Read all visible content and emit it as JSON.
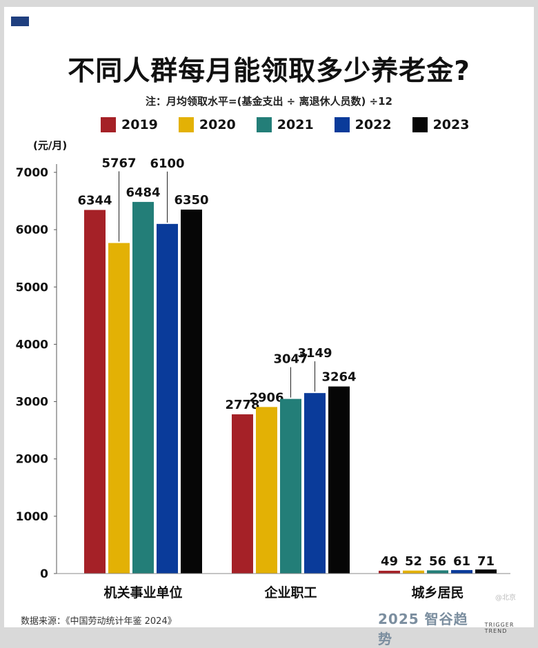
{
  "page": {
    "title": "不同人群每月能领取多少养老金?",
    "note": "注：月均领取水平=(基金支出 ÷ 离退休人员数) ÷12",
    "unit": "(元/月)",
    "source": "数据来源：《中国劳动统计年鉴 2024》",
    "brand": "2025 智谷趋势",
    "brand_sub": "TRIGGER TREND",
    "watermark": "@北京"
  },
  "legend": [
    {
      "label": "2019",
      "color": "#a52127"
    },
    {
      "label": "2020",
      "color": "#e3b105"
    },
    {
      "label": "2021",
      "color": "#237e78"
    },
    {
      "label": "2022",
      "color": "#0a3b9a"
    },
    {
      "label": "2023",
      "color": "#060606"
    }
  ],
  "chart_data": {
    "type": "bar",
    "title": "不同人群每月能领取多少养老金?",
    "ylabel": "(元/月)",
    "xlabel": "",
    "ylim": [
      0,
      7000
    ],
    "yticks": [
      0,
      1000,
      2000,
      3000,
      4000,
      5000,
      6000,
      7000
    ],
    "grid": false,
    "legend_position": "top",
    "categories": [
      "机关事业单位",
      "企业职工",
      "城乡居民"
    ],
    "series": [
      {
        "name": "2019",
        "color": "#a52127",
        "values": [
          6344,
          2778,
          49
        ]
      },
      {
        "name": "2020",
        "color": "#e3b105",
        "values": [
          5767,
          2906,
          52
        ]
      },
      {
        "name": "2021",
        "color": "#237e78",
        "values": [
          6484,
          3047,
          56
        ]
      },
      {
        "name": "2022",
        "color": "#0a3b9a",
        "values": [
          6100,
          3149,
          61
        ]
      },
      {
        "name": "2023",
        "color": "#060606",
        "values": [
          6350,
          3264,
          71
        ]
      }
    ]
  }
}
